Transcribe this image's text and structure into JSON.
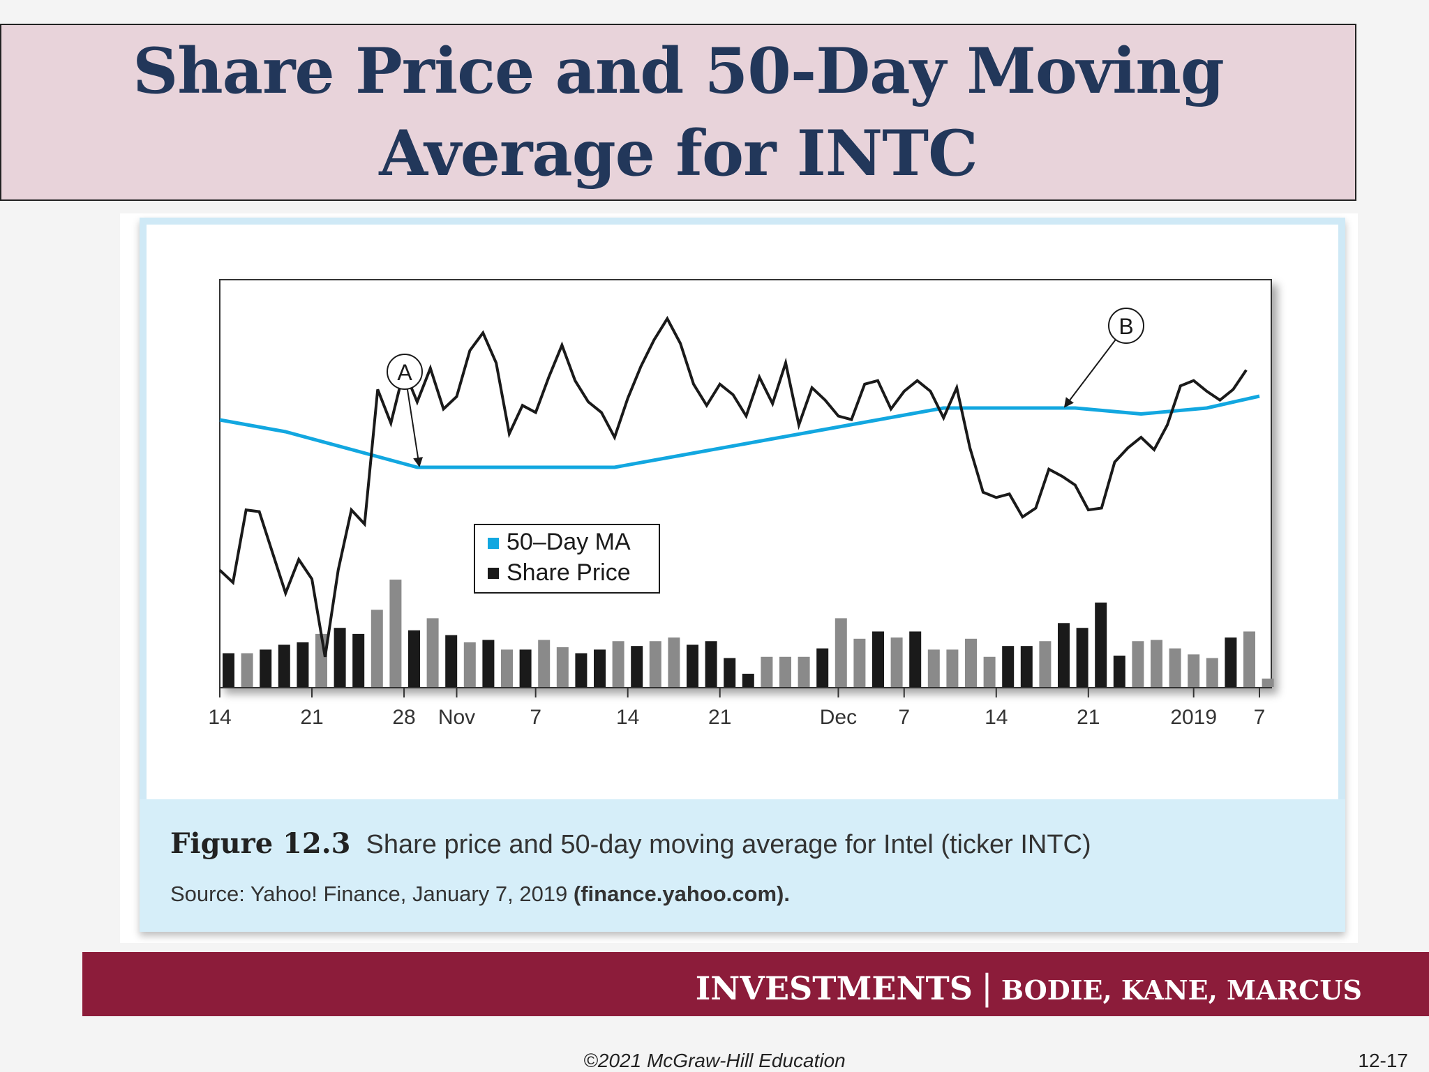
{
  "slide": {
    "title_line1": "Share Price and 50-Day Moving",
    "title_line2": "Average for INTC",
    "caption": {
      "figure_label": "Figure 12.3",
      "figure_text": "Share price and 50-day moving average for Intel (ticker INTC)",
      "source_prefix": "Source: Yahoo! Finance, January 7, 2019 ",
      "source_link": "(finance.yahoo.com)."
    },
    "footer": {
      "brand": "INVESTMENTS",
      "separator": "|",
      "authors": "BODIE, KANE, MARCUS",
      "copyright": "©2021 McGraw-Hill Education",
      "page": "12-17"
    }
  },
  "colors": {
    "title_text": "#22375a",
    "title_bg": "#e8d3da",
    "ma_line": "#12a7e0",
    "price_line": "#1a1a1a",
    "volume_dark": "#1a1a1a",
    "volume_light": "#8a8a8a",
    "card_border": "#cfe9f6",
    "footer_bg": "#8c1c3a"
  },
  "chart_data": {
    "type": "line",
    "title": "",
    "xlabel": "",
    "ylabel": "",
    "x_ticks": [
      {
        "label": "14",
        "day": 0
      },
      {
        "label": "21",
        "day": 7
      },
      {
        "label": "28",
        "day": 14
      },
      {
        "label": "Nov",
        "day": 18
      },
      {
        "label": "7",
        "day": 24
      },
      {
        "label": "14",
        "day": 31
      },
      {
        "label": "21",
        "day": 38
      },
      {
        "label": "Dec",
        "day": 47
      },
      {
        "label": "7",
        "day": 52
      },
      {
        "label": "14",
        "day": 59
      },
      {
        "label": "21",
        "day": 66
      },
      {
        "label": "2019",
        "day": 74
      },
      {
        "label": "7",
        "day": 79
      }
    ],
    "legend": {
      "placement": "center-left",
      "entries": [
        {
          "name": "50–Day MA",
          "color": "#12a7e0"
        },
        {
          "name": "Share Price",
          "color": "#1a1a1a"
        }
      ]
    },
    "series": [
      {
        "name": "Share Price",
        "points": [
          [
            0,
            51.6
          ],
          [
            1,
            50.9
          ],
          [
            2,
            55.0
          ],
          [
            3,
            54.9
          ],
          [
            4,
            52.6
          ],
          [
            5,
            50.3
          ],
          [
            6,
            52.2
          ],
          [
            7,
            51.1
          ],
          [
            8,
            46.7
          ],
          [
            9,
            51.6
          ],
          [
            10,
            55.0
          ],
          [
            11,
            54.2
          ],
          [
            12,
            61.8
          ],
          [
            13,
            59.9
          ],
          [
            14,
            62.9
          ],
          [
            15,
            61.1
          ],
          [
            16,
            63.0
          ],
          [
            17,
            60.7
          ],
          [
            18,
            61.4
          ],
          [
            19,
            64.0
          ],
          [
            20,
            65.0
          ],
          [
            21,
            63.3
          ],
          [
            22,
            59.3
          ],
          [
            23,
            60.9
          ],
          [
            24,
            60.5
          ],
          [
            25,
            62.5
          ],
          [
            26,
            64.3
          ],
          [
            27,
            62.3
          ],
          [
            28,
            61.1
          ],
          [
            29,
            60.5
          ],
          [
            30,
            59.1
          ],
          [
            31,
            61.3
          ],
          [
            32,
            63.1
          ],
          [
            33,
            64.6
          ],
          [
            34,
            65.8
          ],
          [
            35,
            64.4
          ],
          [
            36,
            62.1
          ],
          [
            37,
            60.9
          ],
          [
            38,
            62.1
          ],
          [
            39,
            61.5
          ],
          [
            40,
            60.3
          ],
          [
            41,
            62.5
          ],
          [
            42,
            61.0
          ],
          [
            43,
            63.3
          ],
          [
            44,
            59.8
          ],
          [
            45,
            61.9
          ],
          [
            46,
            61.2
          ],
          [
            47,
            60.3
          ],
          [
            48,
            60.1
          ],
          [
            49,
            62.1
          ],
          [
            50,
            62.3
          ],
          [
            51,
            60.7
          ],
          [
            52,
            61.7
          ],
          [
            53,
            62.3
          ],
          [
            54,
            61.7
          ],
          [
            55,
            60.2
          ],
          [
            56,
            61.9
          ],
          [
            57,
            58.5
          ],
          [
            58,
            56.0
          ],
          [
            59,
            55.7
          ],
          [
            60,
            55.9
          ],
          [
            61,
            54.6
          ],
          [
            62,
            55.1
          ],
          [
            63,
            57.3
          ],
          [
            64,
            56.9
          ],
          [
            65,
            56.4
          ],
          [
            66,
            55.0
          ],
          [
            67,
            55.1
          ],
          [
            68,
            57.7
          ],
          [
            69,
            58.5
          ],
          [
            70,
            59.1
          ],
          [
            71,
            58.4
          ],
          [
            72,
            59.8
          ],
          [
            73,
            62.0
          ],
          [
            74,
            62.3
          ],
          [
            75,
            61.7
          ],
          [
            76,
            61.2
          ],
          [
            77,
            61.8
          ],
          [
            78,
            62.9
          ]
        ]
      },
      {
        "name": "50–Day MA",
        "points": [
          [
            0,
            47.8
          ],
          [
            5,
            47.6
          ],
          [
            10,
            47.3
          ],
          [
            15,
            47.0
          ],
          [
            20,
            47.0
          ],
          [
            25,
            47.0
          ],
          [
            30,
            47.0
          ],
          [
            35,
            47.2
          ],
          [
            40,
            47.4
          ],
          [
            45,
            47.6
          ],
          [
            50,
            47.8
          ],
          [
            55,
            48.0
          ],
          [
            60,
            48.0
          ],
          [
            65,
            48.0
          ],
          [
            70,
            47.9
          ],
          [
            75,
            48.0
          ],
          [
            79,
            48.2
          ]
        ]
      }
    ],
    "volume": {
      "bars": [
        {
          "day": 0,
          "v": 2.8,
          "tone": "dark"
        },
        {
          "day": 1,
          "v": 2.8,
          "tone": "light"
        },
        {
          "day": 2,
          "v": 3.1,
          "tone": "dark"
        },
        {
          "day": 3,
          "v": 3.5,
          "tone": "dark"
        },
        {
          "day": 4,
          "v": 3.7,
          "tone": "dark"
        },
        {
          "day": 5,
          "v": 4.4,
          "tone": "light"
        },
        {
          "day": 6,
          "v": 4.9,
          "tone": "dark"
        },
        {
          "day": 7,
          "v": 4.4,
          "tone": "dark"
        },
        {
          "day": 8,
          "v": 6.4,
          "tone": "light"
        },
        {
          "day": 9,
          "v": 8.9,
          "tone": "light"
        },
        {
          "day": 10,
          "v": 4.7,
          "tone": "dark"
        },
        {
          "day": 11,
          "v": 5.7,
          "tone": "light"
        },
        {
          "day": 12,
          "v": 4.3,
          "tone": "dark"
        },
        {
          "day": 13,
          "v": 3.7,
          "tone": "light"
        },
        {
          "day": 14,
          "v": 3.9,
          "tone": "dark"
        },
        {
          "day": 15,
          "v": 3.1,
          "tone": "light"
        },
        {
          "day": 16,
          "v": 3.1,
          "tone": "dark"
        },
        {
          "day": 17,
          "v": 3.9,
          "tone": "light"
        },
        {
          "day": 18,
          "v": 3.3,
          "tone": "light"
        },
        {
          "day": 19,
          "v": 2.8,
          "tone": "dark"
        },
        {
          "day": 20,
          "v": 3.1,
          "tone": "dark"
        },
        {
          "day": 21,
          "v": 3.8,
          "tone": "light"
        },
        {
          "day": 22,
          "v": 3.4,
          "tone": "dark"
        },
        {
          "day": 23,
          "v": 3.8,
          "tone": "light"
        },
        {
          "day": 24,
          "v": 4.1,
          "tone": "light"
        },
        {
          "day": 25,
          "v": 3.5,
          "tone": "dark"
        },
        {
          "day": 26,
          "v": 3.8,
          "tone": "dark"
        },
        {
          "day": 27,
          "v": 2.4,
          "tone": "dark"
        },
        {
          "day": 28,
          "v": 1.1,
          "tone": "dark"
        },
        {
          "day": 29,
          "v": 2.5,
          "tone": "light"
        },
        {
          "day": 30,
          "v": 2.5,
          "tone": "light"
        },
        {
          "day": 31,
          "v": 2.5,
          "tone": "light"
        },
        {
          "day": 32,
          "v": 3.2,
          "tone": "dark"
        },
        {
          "day": 33,
          "v": 5.7,
          "tone": "light"
        },
        {
          "day": 34,
          "v": 4.0,
          "tone": "light"
        },
        {
          "day": 35,
          "v": 4.6,
          "tone": "dark"
        },
        {
          "day": 36,
          "v": 4.1,
          "tone": "light"
        },
        {
          "day": 37,
          "v": 4.6,
          "tone": "dark"
        },
        {
          "day": 38,
          "v": 3.1,
          "tone": "light"
        },
        {
          "day": 39,
          "v": 3.1,
          "tone": "light"
        },
        {
          "day": 40,
          "v": 4.0,
          "tone": "light"
        },
        {
          "day": 41,
          "v": 2.5,
          "tone": "light"
        },
        {
          "day": 42,
          "v": 3.4,
          "tone": "dark"
        },
        {
          "day": 43,
          "v": 3.4,
          "tone": "dark"
        },
        {
          "day": 44,
          "v": 3.8,
          "tone": "light"
        },
        {
          "day": 45,
          "v": 5.3,
          "tone": "dark"
        },
        {
          "day": 46,
          "v": 4.9,
          "tone": "dark"
        },
        {
          "day": 47,
          "v": 7.0,
          "tone": "dark"
        },
        {
          "day": 48,
          "v": 2.6,
          "tone": "dark"
        },
        {
          "day": 49,
          "v": 3.8,
          "tone": "light"
        },
        {
          "day": 50,
          "v": 3.9,
          "tone": "light"
        },
        {
          "day": 51,
          "v": 3.2,
          "tone": "light"
        },
        {
          "day": 52,
          "v": 2.7,
          "tone": "light"
        },
        {
          "day": 53,
          "v": 2.4,
          "tone": "light"
        },
        {
          "day": 54,
          "v": 4.1,
          "tone": "dark"
        },
        {
          "day": 55,
          "v": 4.6,
          "tone": "light"
        },
        {
          "day": 56,
          "v": 0.7,
          "tone": "light"
        }
      ]
    },
    "annotations": [
      {
        "label": "A",
        "target_day": 15,
        "target_value": 47.0
      },
      {
        "label": "B",
        "target_day": 64,
        "target_value": 48.0
      }
    ]
  }
}
